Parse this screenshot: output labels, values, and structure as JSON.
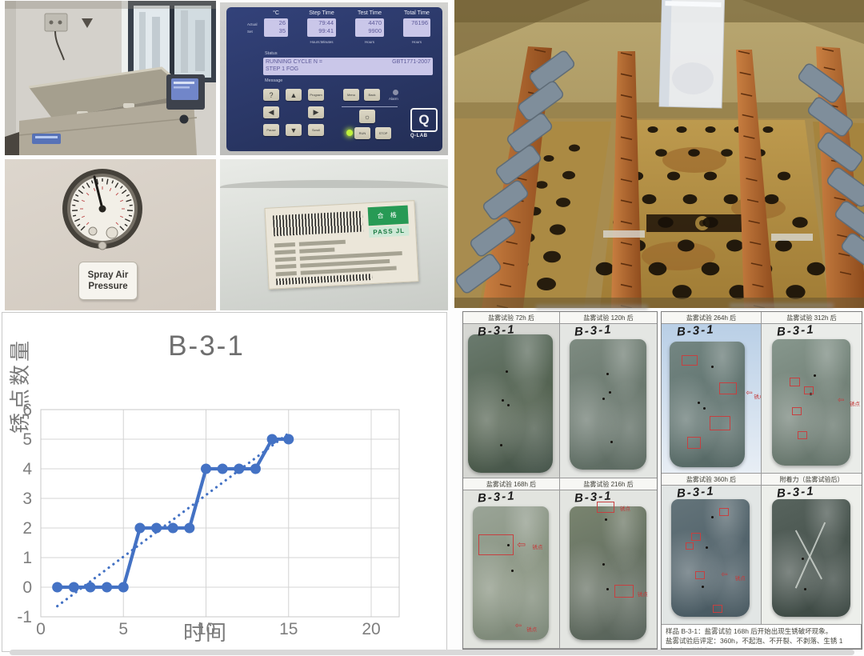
{
  "sample_id": "B-3-1",
  "panel": {
    "headers": {
      "temp": "°C",
      "step": "Step Time",
      "test": "Test Time",
      "total": "Total Time"
    },
    "rows": {
      "actual": "Actual",
      "set": "Set"
    },
    "values": {
      "temp_actual": "26",
      "temp_set": "35",
      "step_actual": "79:44",
      "step_set": "99:41",
      "test_actual": "4470",
      "test_set": "9900",
      "total": "76196"
    },
    "units": {
      "step": "Hours:Minutes",
      "test": "Hours",
      "total": "Hours"
    },
    "status_label": "Status",
    "status_line1": "RUNNING CYCLE N =",
    "status_std": "GBT1771-2007",
    "status_line2": "STEP 1 FOG",
    "message_label": "Message",
    "keys": {
      "help": "?",
      "up": "▲",
      "program": "Program",
      "left": "◀",
      "right": "▶",
      "pause": "Pause",
      "down": "▼",
      "scroll": "Scroll",
      "menu": "Menu",
      "back": "Back",
      "lamp": "☼",
      "run": "RUN",
      "stop": "STOP",
      "alarm": "Alarm"
    },
    "brand_letter": "Q",
    "brand": "Q-LAB"
  },
  "gauge": {
    "line1": "Spray Air",
    "line2": "Pressure"
  },
  "tag": {
    "pass_cn": "合 格",
    "pass_en": "PASS JL"
  },
  "chart_data": {
    "type": "line",
    "title": "B-3-1",
    "xlabel": "时间",
    "ylabel": "锈点数量",
    "xlim": [
      0,
      20
    ],
    "ylim": [
      -1,
      6
    ],
    "xticks": [
      0,
      5,
      10,
      15,
      20
    ],
    "yticks": [
      -1,
      0,
      1,
      2,
      3,
      4,
      5,
      6
    ],
    "grid": true,
    "color": "#4472C4",
    "series": [
      {
        "name": "锈点数量",
        "x": [
          1,
          2,
          3,
          4,
          5,
          6,
          7,
          8,
          9,
          10,
          11,
          12,
          13,
          14,
          15
        ],
        "y": [
          0,
          0,
          0,
          0,
          0,
          2,
          2,
          2,
          2,
          4,
          4,
          4,
          4,
          5,
          5
        ],
        "style": "solid-markers"
      },
      {
        "name": "趋势线",
        "x": [
          1,
          15
        ],
        "y": [
          -0.64,
          5.2
        ],
        "style": "dotted"
      }
    ]
  },
  "samples": {
    "labels": [
      "盐雾试验 72h 后",
      "盐雾试验 120h 后",
      "盐雾试验 168h 后",
      "盐雾试验 216h 后",
      "盐雾试验 264h 后",
      "盐雾试验 312h 后",
      "盐雾试验 360h 后",
      "附着力（盐雾试验后）"
    ],
    "annotation": "锈点",
    "arrow": "⇦",
    "caption1": "样品 B-3-1：盐雾试验 168h 后开始出现生锈破坏现象。",
    "caption2": "盐雾试验后评定：360h，不起泡、不开裂、不剥落、生锈 1（S2）;附着力：0 级。"
  }
}
